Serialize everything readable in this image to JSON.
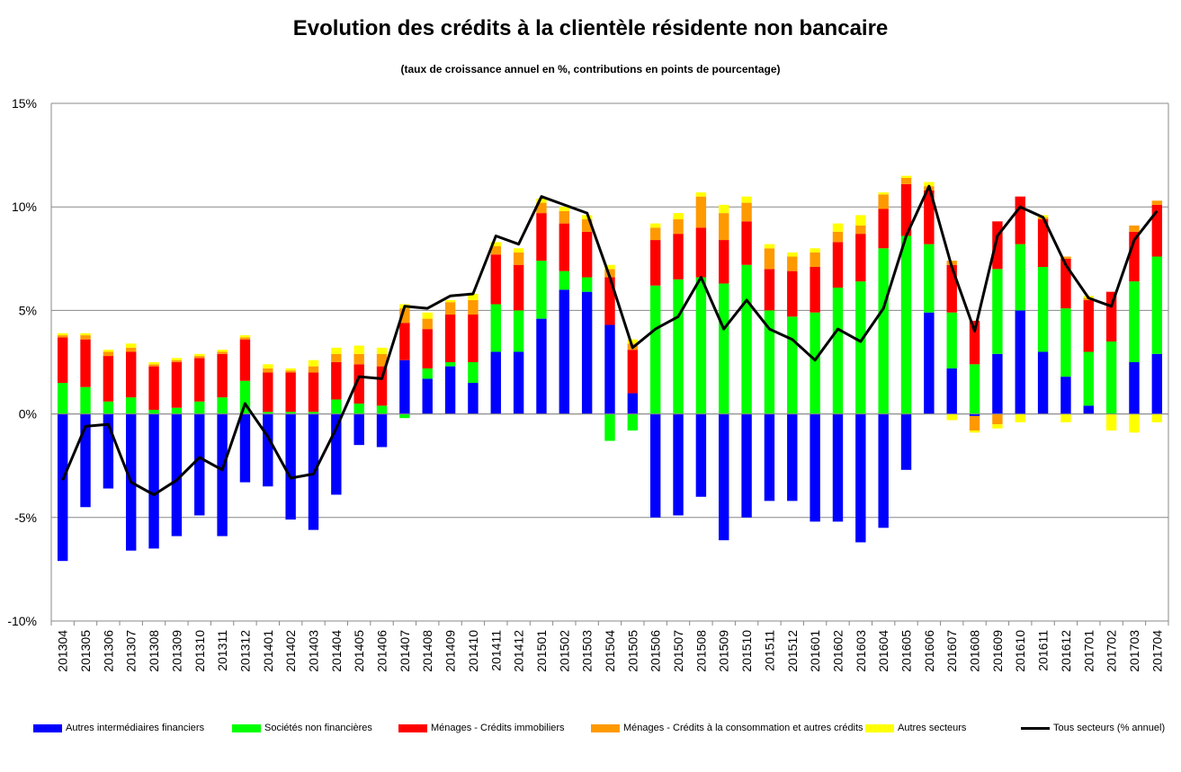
{
  "chart_data": {
    "type": "bar",
    "stacked": true,
    "title": "Evolution des crédits à la clientèle résidente non bancaire",
    "subtitle": "(taux de croissance annuel en %, contributions en points de pourcentage)",
    "ylim": [
      -10,
      15
    ],
    "yticks": [
      "-10%",
      "-5%",
      "0%",
      "5%",
      "10%",
      "15%"
    ],
    "ytick_values": [
      -10,
      -5,
      0,
      5,
      10,
      15
    ],
    "grid": true,
    "legend_position": "bottom",
    "categories": [
      "201304",
      "201305",
      "201306",
      "201307",
      "201308",
      "201309",
      "201310",
      "201311",
      "201312",
      "201401",
      "201402",
      "201403",
      "201404",
      "201405",
      "201406",
      "201407",
      "201408",
      "201409",
      "201410",
      "201411",
      "201412",
      "201501",
      "201502",
      "201503",
      "201504",
      "201505",
      "201506",
      "201507",
      "201508",
      "201509",
      "201510",
      "201511",
      "201512",
      "201601",
      "201602",
      "201603",
      "201604",
      "201605",
      "201606",
      "201607",
      "201608",
      "201609",
      "201610",
      "201611",
      "201612",
      "201701",
      "201702",
      "201703",
      "201704"
    ],
    "series": [
      {
        "name": "Autres intermédiaires financiers",
        "color": "#0000ff",
        "values": [
          -7.1,
          -4.5,
          -3.6,
          -6.6,
          -6.5,
          -5.9,
          -4.9,
          -5.9,
          -3.3,
          -3.5,
          -5.1,
          -5.6,
          -3.9,
          -1.5,
          -1.6,
          2.6,
          1.7,
          2.3,
          1.5,
          3.0,
          3.0,
          4.6,
          6.0,
          5.9,
          4.3,
          1.0,
          -5.0,
          -4.9,
          -4.0,
          -6.1,
          -5.0,
          -4.2,
          -4.2,
          -5.2,
          -5.2,
          -6.2,
          -5.5,
          -2.7,
          4.9,
          2.2,
          -0.1,
          2.9,
          5.0,
          3.0,
          1.8,
          0.4,
          0.0,
          2.5,
          2.9
        ]
      },
      {
        "name": "Sociétés non financières",
        "color": "#00ff00",
        "values": [
          1.5,
          1.3,
          0.6,
          0.8,
          0.2,
          0.3,
          0.6,
          0.8,
          1.6,
          0.1,
          0.1,
          0.1,
          0.7,
          0.5,
          0.4,
          -0.2,
          0.5,
          0.2,
          1.0,
          2.3,
          2.0,
          2.8,
          0.9,
          0.7,
          -1.3,
          -0.8,
          6.2,
          6.5,
          6.6,
          6.3,
          7.2,
          5.0,
          4.7,
          4.9,
          6.1,
          6.4,
          8.0,
          8.6,
          3.3,
          2.7,
          2.4,
          4.1,
          3.2,
          4.1,
          3.3,
          2.6,
          3.5,
          3.9,
          4.7
        ]
      },
      {
        "name": "Ménages - Crédits immobiliers",
        "color": "#ff0000",
        "values": [
          2.2,
          2.3,
          2.2,
          2.2,
          2.1,
          2.2,
          2.1,
          2.1,
          2.0,
          1.9,
          1.9,
          1.9,
          1.8,
          1.9,
          1.9,
          1.8,
          1.9,
          2.3,
          2.3,
          2.4,
          2.2,
          2.3,
          2.3,
          2.2,
          2.3,
          2.1,
          2.2,
          2.2,
          2.4,
          2.1,
          2.1,
          2.0,
          2.2,
          2.2,
          2.2,
          2.3,
          1.9,
          2.5,
          2.6,
          2.3,
          2.1,
          2.3,
          2.3,
          2.3,
          2.4,
          2.5,
          2.4,
          2.4,
          2.5
        ]
      },
      {
        "name": "Ménages - Crédits à la consommation et autres crédits",
        "color": "#ff9900",
        "values": [
          0.1,
          0.2,
          0.2,
          0.2,
          0.1,
          0.1,
          0.1,
          0.1,
          0.1,
          0.2,
          0.1,
          0.3,
          0.4,
          0.5,
          0.6,
          0.7,
          0.5,
          0.6,
          0.7,
          0.4,
          0.6,
          0.5,
          0.6,
          0.6,
          0.4,
          0.3,
          0.6,
          0.7,
          1.5,
          1.3,
          0.9,
          1.0,
          0.7,
          0.7,
          0.5,
          0.4,
          0.7,
          0.3,
          0.2,
          0.2,
          -0.7,
          -0.5,
          0.0,
          0.1,
          0.1,
          0.1,
          0.0,
          0.3,
          0.2
        ]
      },
      {
        "name": "Autres secteurs",
        "color": "#ffff00",
        "values": [
          0.1,
          0.1,
          0.1,
          0.2,
          0.1,
          0.1,
          0.1,
          0.1,
          0.1,
          0.2,
          0.1,
          0.3,
          0.3,
          0.4,
          0.3,
          0.2,
          0.3,
          0.1,
          0.3,
          0.2,
          0.2,
          0.2,
          0.2,
          0.2,
          0.2,
          0.2,
          0.2,
          0.3,
          0.2,
          0.4,
          0.3,
          0.2,
          0.2,
          0.2,
          0.4,
          0.5,
          0.1,
          0.1,
          0.2,
          -0.3,
          -0.1,
          -0.2,
          -0.4,
          0.1,
          -0.4,
          0.1,
          -0.8,
          -0.9,
          -0.4
        ]
      }
    ],
    "line_series": {
      "name": "Tous secteurs (% annuel)",
      "color": "#000000",
      "values": [
        -3.2,
        -0.6,
        -0.5,
        -3.3,
        -3.9,
        -3.2,
        -2.1,
        -2.7,
        0.5,
        -1.1,
        -3.1,
        -2.9,
        -0.7,
        1.8,
        1.7,
        5.2,
        5.1,
        5.7,
        5.8,
        8.6,
        8.2,
        10.5,
        10.1,
        9.7,
        6.6,
        3.2,
        4.1,
        4.7,
        6.6,
        4.1,
        5.5,
        4.1,
        3.6,
        2.6,
        4.1,
        3.5,
        5.1,
        8.6,
        11.0,
        7.1,
        4.0,
        8.6,
        10.0,
        9.5,
        7.2,
        5.6,
        5.2,
        8.4,
        9.8
      ]
    }
  }
}
